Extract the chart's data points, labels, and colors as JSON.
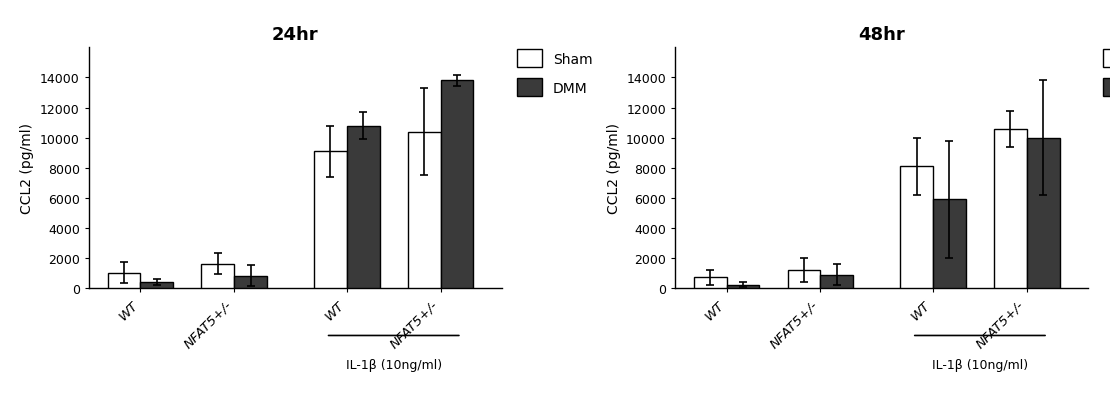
{
  "panel1": {
    "title": "24hr",
    "groups": [
      "WT",
      "NFAT5+/-",
      "WT",
      "NFAT5+/-"
    ],
    "sham_values": [
      1050,
      1650,
      9100,
      10400
    ],
    "sham_errors": [
      700,
      700,
      1700,
      2900
    ],
    "dmm_values": [
      450,
      850,
      10800,
      13800
    ],
    "dmm_errors": [
      200,
      700,
      900,
      350
    ],
    "ylabel": "CCL2 (pg/ml)",
    "ylim": [
      0,
      16000
    ],
    "yticks": [
      0,
      2000,
      4000,
      6000,
      8000,
      10000,
      12000,
      14000
    ],
    "il1b_label": "IL-1β (10ng/ml)",
    "il1b_groups": [
      2,
      3
    ]
  },
  "panel2": {
    "title": "48hr",
    "groups": [
      "WT",
      "NFAT5+/-",
      "WT",
      "NFAT5+/-"
    ],
    "sham_values": [
      750,
      1250,
      8100,
      10600
    ],
    "sham_errors": [
      500,
      800,
      1900,
      1200
    ],
    "dmm_values": [
      250,
      900,
      5900,
      10000
    ],
    "dmm_errors": [
      150,
      700,
      3900,
      3800
    ],
    "ylabel": "CCL2 (pg/ml)",
    "ylim": [
      0,
      16000
    ],
    "yticks": [
      0,
      2000,
      4000,
      6000,
      8000,
      10000,
      12000,
      14000
    ],
    "il1b_label": "IL-1β (10ng/ml)",
    "il1b_groups": [
      2,
      3
    ]
  },
  "sham_color": "#ffffff",
  "dmm_color": "#3a3a3a",
  "bar_edge_color": "#000000",
  "bar_width": 0.35,
  "legend_labels": [
    "Sham",
    "DMM"
  ],
  "positions": [
    0,
    1,
    2.2,
    3.2
  ]
}
